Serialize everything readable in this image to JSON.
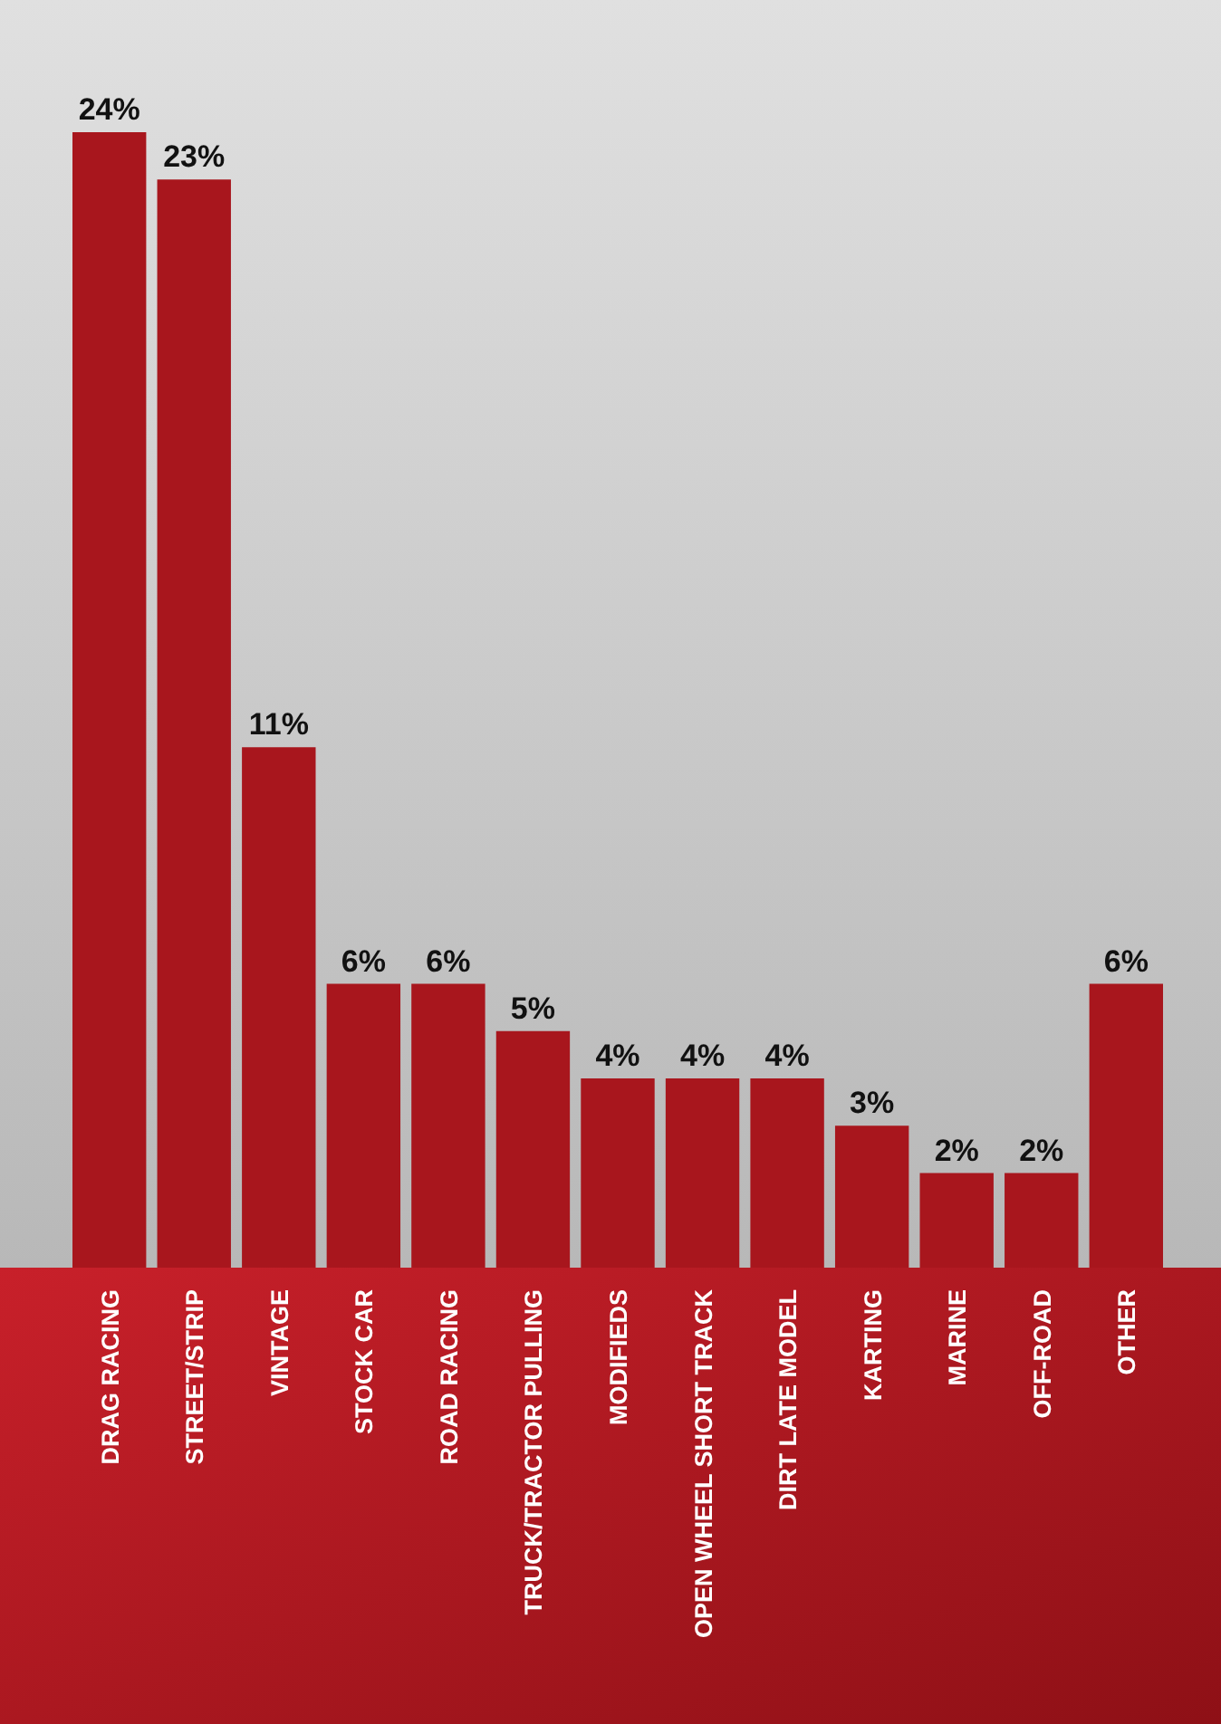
{
  "chart_data": {
    "type": "bar",
    "categories": [
      "DRAG RACING",
      "STREET/STRIP",
      "VINTAGE",
      "STOCK CAR",
      "ROAD RACING",
      "TRUCK/TRACTOR PULLING",
      "MODIFIEDS",
      "OPEN WHEEL SHORT TRACK",
      "DIRT LATE MODEL",
      "KARTING",
      "MARINE",
      "OFF-ROAD",
      "OTHER"
    ],
    "values": [
      24,
      23,
      11,
      6,
      6,
      5,
      4,
      4,
      4,
      3,
      2,
      2,
      6
    ],
    "value_labels": [
      "24%",
      "23%",
      "11%",
      "6%",
      "6%",
      "5%",
      "4%",
      "4%",
      "4%",
      "3%",
      "2%",
      "2%",
      "6%"
    ],
    "color": "#a8161d"
  }
}
